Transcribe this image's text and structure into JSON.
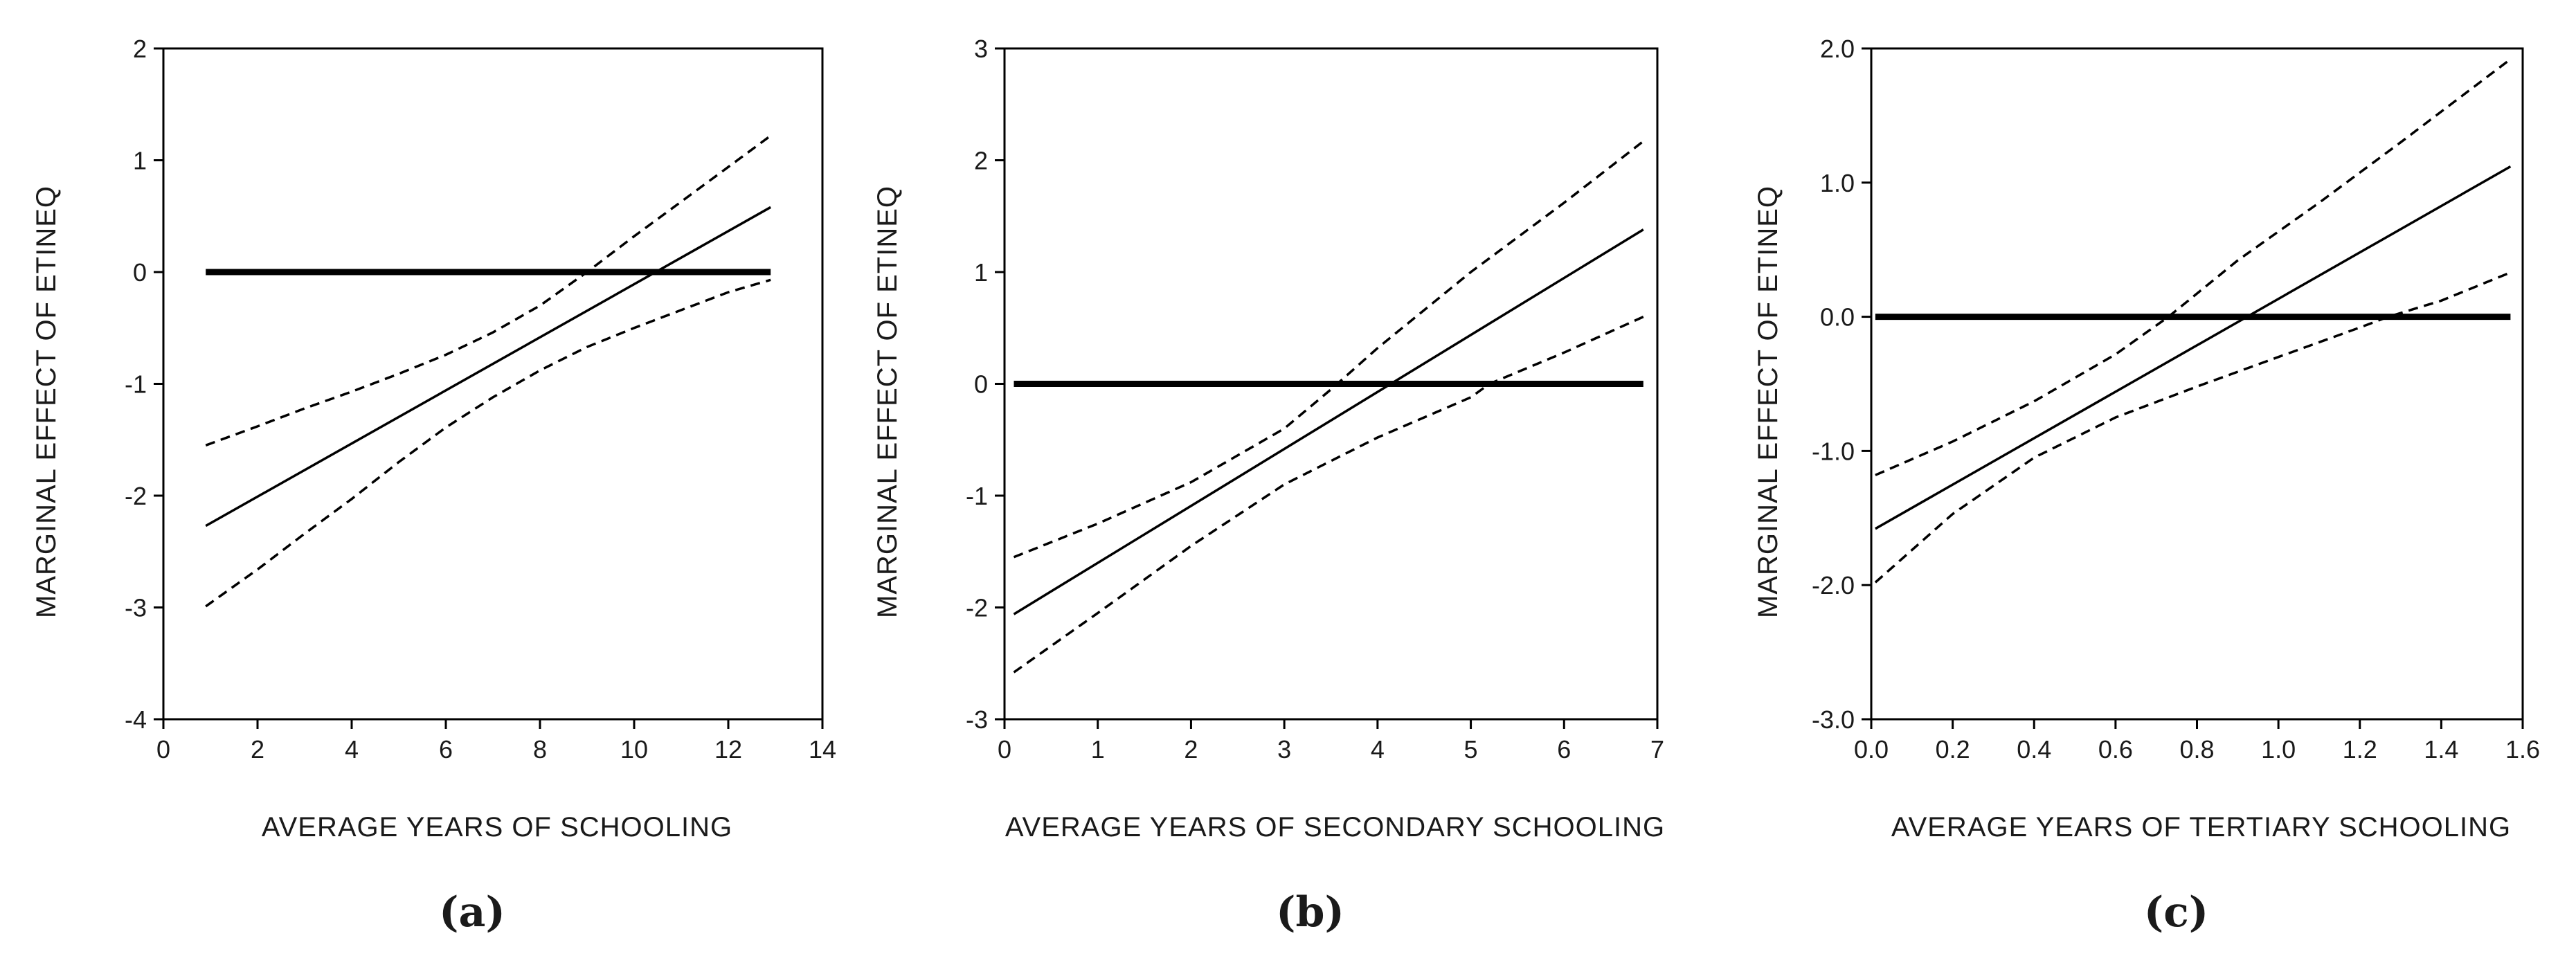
{
  "chart_data": [
    {
      "type": "line",
      "panel_label": "(a)",
      "xlabel": "AVERAGE YEARS OF SCHOOLING",
      "ylabel": "MARGINAL EFFECT OF ETINEQ",
      "xlim": [
        0,
        14
      ],
      "ylim": [
        -4,
        2
      ],
      "xticks": [
        0,
        2,
        4,
        6,
        8,
        10,
        12,
        14
      ],
      "yticks": [
        -4,
        -3,
        -2,
        -1,
        0,
        1,
        2
      ],
      "tick_decimals": 0,
      "series": [
        {
          "name": "marginal-effect",
          "style": "solid",
          "x": [
            0.9,
            12.9
          ],
          "y": [
            -2.27,
            0.58
          ]
        },
        {
          "name": "upper-bound",
          "style": "dashed",
          "x": [
            0.9,
            2,
            3,
            4,
            5,
            6,
            7,
            8,
            9,
            10,
            11,
            12,
            12.9
          ],
          "y": [
            -1.55,
            -1.38,
            -1.22,
            -1.07,
            -0.91,
            -0.74,
            -0.54,
            -0.3,
            0.0,
            0.32,
            0.63,
            0.94,
            1.22
          ]
        },
        {
          "name": "lower-bound",
          "style": "dashed",
          "x": [
            0.9,
            2,
            3,
            4,
            5,
            6,
            7,
            8,
            9,
            10,
            11,
            12,
            12.9
          ],
          "y": [
            -2.99,
            -2.66,
            -2.34,
            -2.03,
            -1.7,
            -1.39,
            -1.12,
            -0.88,
            -0.67,
            -0.5,
            -0.34,
            -0.18,
            -0.07
          ]
        },
        {
          "name": "zero-reference",
          "style": "thick",
          "x": [
            0.9,
            12.9
          ],
          "y": [
            0,
            0
          ]
        }
      ]
    },
    {
      "type": "line",
      "panel_label": "(b)",
      "xlabel": "AVERAGE YEARS OF SECONDARY SCHOOLING",
      "ylabel": "MARGINAL EFFECT OF ETINEQ",
      "xlim": [
        0,
        7
      ],
      "ylim": [
        -3,
        3
      ],
      "xticks": [
        0,
        1,
        2,
        3,
        4,
        5,
        6,
        7
      ],
      "yticks": [
        -3,
        -2,
        -1,
        0,
        1,
        2,
        3
      ],
      "tick_decimals": 0,
      "series": [
        {
          "name": "marginal-effect",
          "style": "solid",
          "x": [
            0.1,
            6.85
          ],
          "y": [
            -2.06,
            1.38
          ]
        },
        {
          "name": "upper-bound",
          "style": "dashed",
          "x": [
            0.1,
            1,
            2,
            3,
            3.5,
            4,
            5,
            6,
            6.85
          ],
          "y": [
            -1.55,
            -1.25,
            -0.88,
            -0.4,
            -0.05,
            0.32,
            1.0,
            1.62,
            2.17
          ]
        },
        {
          "name": "lower-bound",
          "style": "dashed",
          "x": [
            0.1,
            1,
            2,
            3,
            4,
            5,
            5.2,
            6,
            6.85
          ],
          "y": [
            -2.58,
            -2.05,
            -1.45,
            -0.9,
            -0.48,
            -0.12,
            0.0,
            0.28,
            0.6
          ]
        },
        {
          "name": "zero-reference",
          "style": "thick",
          "x": [
            0.1,
            6.85
          ],
          "y": [
            0,
            0
          ]
        }
      ]
    },
    {
      "type": "line",
      "panel_label": "(c)",
      "xlabel": "AVERAGE YEARS OF TERTIARY SCHOOLING",
      "ylabel": "MARGINAL EFFECT OF ETINEQ",
      "xlim": [
        0,
        1.6
      ],
      "ylim": [
        -3,
        2
      ],
      "xticks": [
        0,
        0.2,
        0.4,
        0.6,
        0.8,
        1.0,
        1.2,
        1.4,
        1.6
      ],
      "yticks": [
        -3,
        -2,
        -1,
        0,
        1,
        2
      ],
      "tick_decimals": 1,
      "series": [
        {
          "name": "marginal-effect",
          "style": "solid",
          "x": [
            0.01,
            1.57
          ],
          "y": [
            -1.58,
            1.12
          ]
        },
        {
          "name": "upper-bound",
          "style": "dashed",
          "x": [
            0.01,
            0.2,
            0.4,
            0.6,
            0.73,
            0.9,
            1.1,
            1.3,
            1.57
          ],
          "y": [
            -1.18,
            -0.93,
            -0.63,
            -0.28,
            0.0,
            0.42,
            0.85,
            1.3,
            1.92
          ]
        },
        {
          "name": "lower-bound",
          "style": "dashed",
          "x": [
            0.01,
            0.2,
            0.4,
            0.6,
            0.8,
            1.0,
            1.2,
            1.27,
            1.4,
            1.57
          ],
          "y": [
            -1.98,
            -1.47,
            -1.05,
            -0.75,
            -0.52,
            -0.3,
            -0.08,
            0.0,
            0.12,
            0.33
          ]
        },
        {
          "name": "zero-reference",
          "style": "thick",
          "x": [
            0.01,
            1.57
          ],
          "y": [
            0,
            0
          ]
        }
      ]
    }
  ]
}
